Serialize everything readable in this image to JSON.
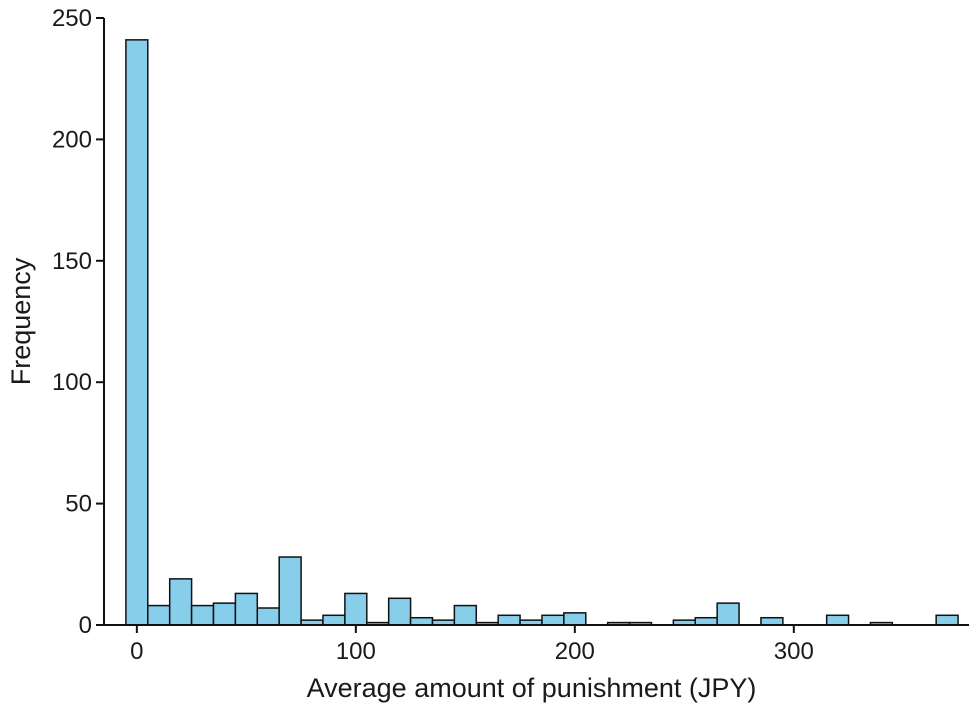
{
  "chart_data": {
    "type": "bar",
    "subtype": "histogram",
    "title": "",
    "xlabel": "Average amount of punishment (JPY)",
    "ylabel": "Frequency",
    "xlim": [
      -15,
      380
    ],
    "ylim": [
      0,
      250
    ],
    "x_ticks": [
      0,
      100,
      200,
      300
    ],
    "y_ticks": [
      0,
      50,
      100,
      150,
      200,
      250
    ],
    "bin_width": 10,
    "bin_centers": [
      0,
      10,
      20,
      30,
      40,
      50,
      60,
      70,
      80,
      90,
      100,
      110,
      120,
      130,
      140,
      150,
      160,
      170,
      180,
      190,
      200,
      210,
      220,
      230,
      240,
      250,
      260,
      270,
      280,
      290,
      300,
      310,
      320,
      330,
      340,
      350,
      360,
      370
    ],
    "values": [
      241,
      8,
      19,
      8,
      9,
      13,
      7,
      28,
      2,
      4,
      13,
      1,
      11,
      3,
      2,
      8,
      1,
      4,
      2,
      4,
      5,
      0,
      1,
      1,
      0,
      2,
      3,
      9,
      0,
      3,
      0,
      0,
      4,
      0,
      1,
      0,
      0,
      4
    ],
    "bar_color": "#87ceeb",
    "edge_color": "#111111",
    "grid": false,
    "legend": "none"
  }
}
